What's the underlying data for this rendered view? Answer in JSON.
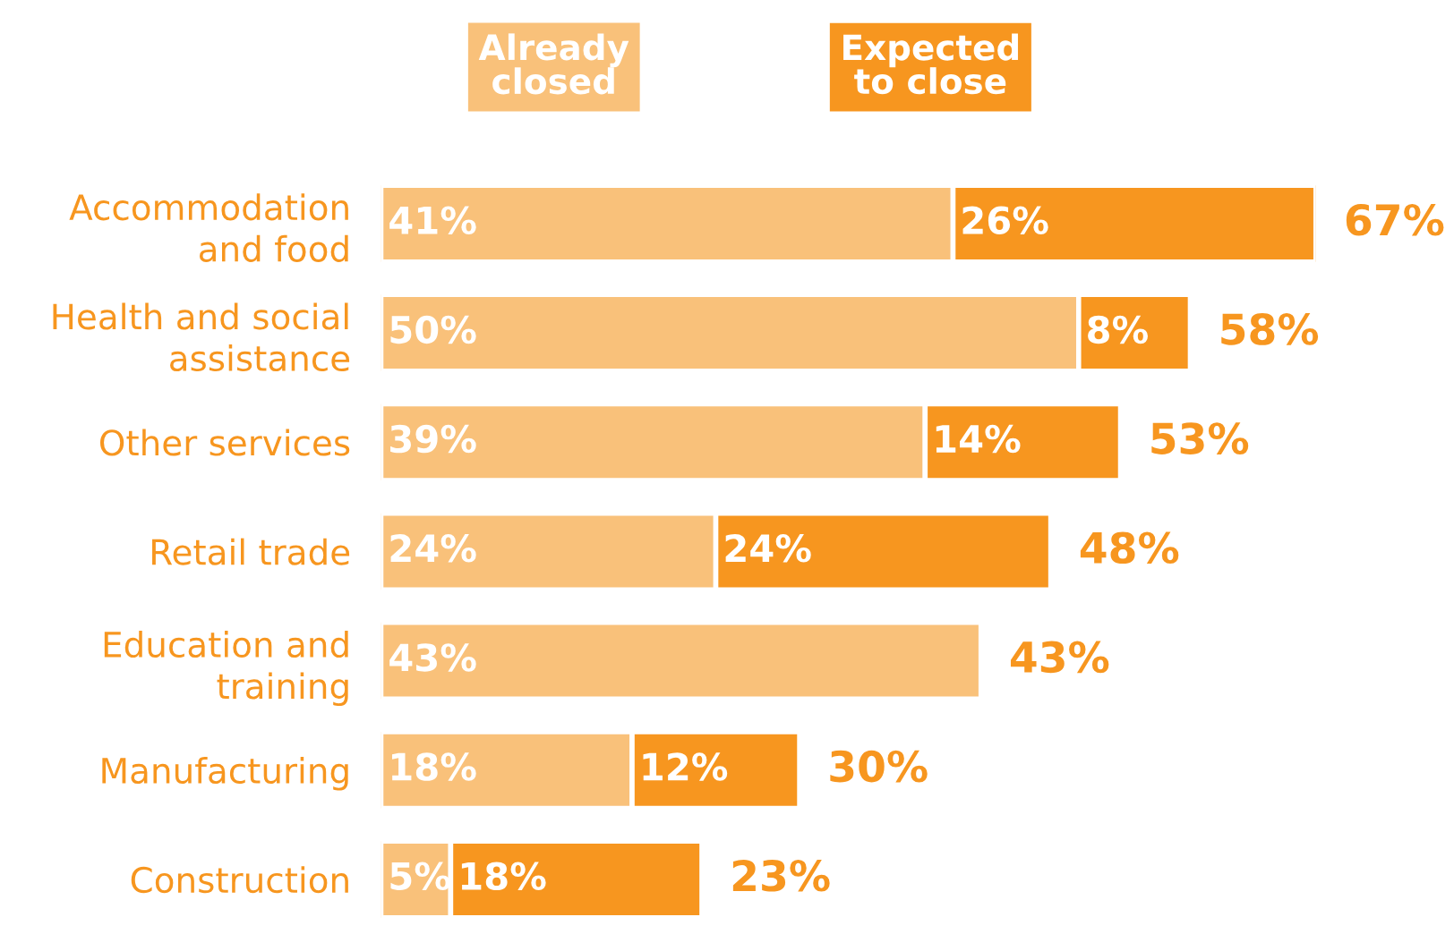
{
  "chart_data": {
    "type": "bar",
    "orientation": "horizontal",
    "stacked": true,
    "legend": "top",
    "grid": false,
    "categories": [
      "Accommodation\nand food",
      "Health and social\nassistance",
      "Other services",
      "Retail trade",
      "Education and\ntraining",
      "Manufacturing",
      "Construction"
    ],
    "series": [
      {
        "name": "Already\nclosed",
        "color": "#f9c17a",
        "values": [
          41,
          50,
          39,
          24,
          43,
          18,
          5
        ],
        "value_labels": [
          "41%",
          "50%",
          "39%",
          "24%",
          "43%",
          "18%",
          "5%"
        ]
      },
      {
        "name": "Expected\nto close",
        "color": "#f7961f",
        "values": [
          26,
          8,
          14,
          24,
          null,
          12,
          18
        ],
        "value_labels": [
          "26%",
          "8%",
          "14%",
          "24%",
          null,
          "12%",
          "18%"
        ]
      }
    ],
    "totals": [
      "67%",
      "58%",
      "53%",
      "48%",
      "43%",
      "30%",
      "23%"
    ]
  }
}
